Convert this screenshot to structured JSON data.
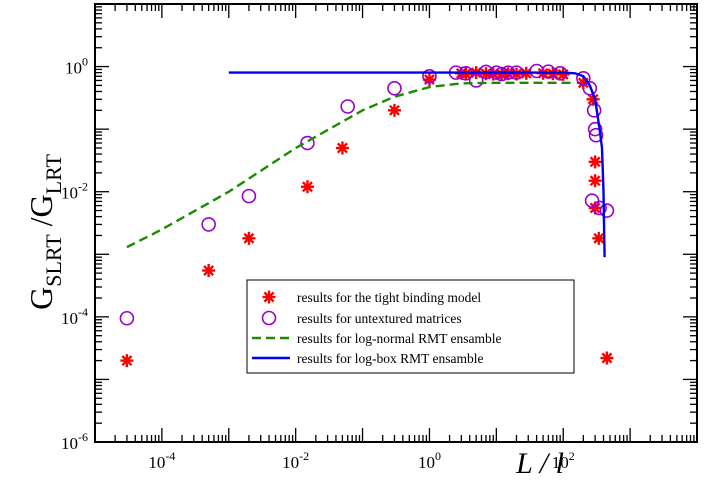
{
  "chart_data": {
    "type": "scatter",
    "title": "",
    "xlabel": "L / l",
    "ylabel": "G_SLRT / G_LRT",
    "x_scale": "log",
    "y_scale": "log",
    "xlim": [
      1e-05,
      10000
    ],
    "ylim": [
      1e-06,
      10
    ],
    "x_ticks": [
      {
        "value": 0.0001,
        "mantissa": "10",
        "exp": "-4"
      },
      {
        "value": 0.01,
        "mantissa": "10",
        "exp": "-2"
      },
      {
        "value": 1,
        "mantissa": "10",
        "exp": "0"
      },
      {
        "value": 100,
        "mantissa": "10",
        "exp": "2"
      }
    ],
    "y_ticks": [
      {
        "value": 1e-06,
        "mantissa": "10",
        "exp": "-6"
      },
      {
        "value": 0.0001,
        "mantissa": "10",
        "exp": "-4"
      },
      {
        "value": 0.01,
        "mantissa": "10",
        "exp": "-2"
      },
      {
        "value": 1,
        "mantissa": "10",
        "exp": "0"
      }
    ],
    "series": [
      {
        "name": "results for the tight binding model",
        "marker": "star",
        "color": "#ff0000",
        "points": [
          [
            3e-05,
            2e-05
          ],
          [
            0.0005,
            0.00055
          ],
          [
            0.002,
            0.0018
          ],
          [
            0.015,
            0.012
          ],
          [
            0.05,
            0.05
          ],
          [
            0.3,
            0.2
          ],
          [
            1,
            0.62
          ],
          [
            3,
            0.78
          ],
          [
            3.5,
            0.76
          ],
          [
            5,
            0.8
          ],
          [
            7,
            0.77
          ],
          [
            9,
            0.76
          ],
          [
            12,
            0.76
          ],
          [
            15,
            0.77
          ],
          [
            20,
            0.76
          ],
          [
            28,
            0.78
          ],
          [
            50,
            0.78
          ],
          [
            70,
            0.77
          ],
          [
            100,
            0.75
          ],
          [
            200,
            0.55
          ],
          [
            280,
            0.3
          ],
          [
            300,
            0.03
          ],
          [
            300,
            0.015
          ],
          [
            300,
            0.0055
          ],
          [
            340,
            0.0018
          ],
          [
            450,
            2.2e-05
          ]
        ]
      },
      {
        "name": "results for untextured matrices",
        "marker": "circle",
        "color": "#9900cc",
        "points": [
          [
            3e-05,
            9.5e-05
          ],
          [
            0.0005,
            0.003
          ],
          [
            0.002,
            0.0085
          ],
          [
            0.015,
            0.06
          ],
          [
            0.06,
            0.23
          ],
          [
            0.3,
            0.45
          ],
          [
            1,
            0.7
          ],
          [
            2.5,
            0.8
          ],
          [
            3.5,
            0.78
          ],
          [
            5,
            0.6
          ],
          [
            7,
            0.82
          ],
          [
            10,
            0.8
          ],
          [
            12,
            0.76
          ],
          [
            15,
            0.8
          ],
          [
            20,
            0.8
          ],
          [
            40,
            0.85
          ],
          [
            60,
            0.83
          ],
          [
            90,
            0.78
          ],
          [
            200,
            0.65
          ],
          [
            250,
            0.45
          ],
          [
            290,
            0.2
          ],
          [
            300,
            0.1
          ],
          [
            310,
            0.08
          ],
          [
            270,
            0.0072
          ],
          [
            350,
            0.0055
          ],
          [
            450,
            0.005
          ]
        ]
      },
      {
        "name": "results for log-normal RMT ensamble",
        "style": "dashed",
        "color": "#1a8c00",
        "points": [
          [
            3e-05,
            0.0013
          ],
          [
            0.0001,
            0.0025
          ],
          [
            0.001,
            0.01
          ],
          [
            0.01,
            0.05
          ],
          [
            0.1,
            0.2
          ],
          [
            0.3,
            0.33
          ],
          [
            1,
            0.47
          ],
          [
            3,
            0.54
          ],
          [
            10,
            0.55
          ],
          [
            50,
            0.55
          ],
          [
            150,
            0.55
          ]
        ]
      },
      {
        "name": "results for log-box RMT ensamble",
        "style": "solid",
        "color": "#0000ee",
        "points": [
          [
            0.001,
            0.8
          ],
          [
            1,
            0.8
          ],
          [
            10,
            0.8
          ],
          [
            100,
            0.8
          ],
          [
            150,
            0.78
          ],
          [
            200,
            0.7
          ],
          [
            250,
            0.5
          ],
          [
            300,
            0.3
          ],
          [
            350,
            0.1
          ],
          [
            380,
            0.05
          ],
          [
            400,
            0.01
          ],
          [
            410,
            0.002
          ],
          [
            415,
            0.0009
          ]
        ]
      }
    ],
    "legend": {
      "position": "lower-center",
      "entries": [
        "results for the tight binding model",
        "results for untextured matrices",
        "results for log-normal RMT ensamble",
        "results for log-box RMT ensamble"
      ]
    }
  }
}
